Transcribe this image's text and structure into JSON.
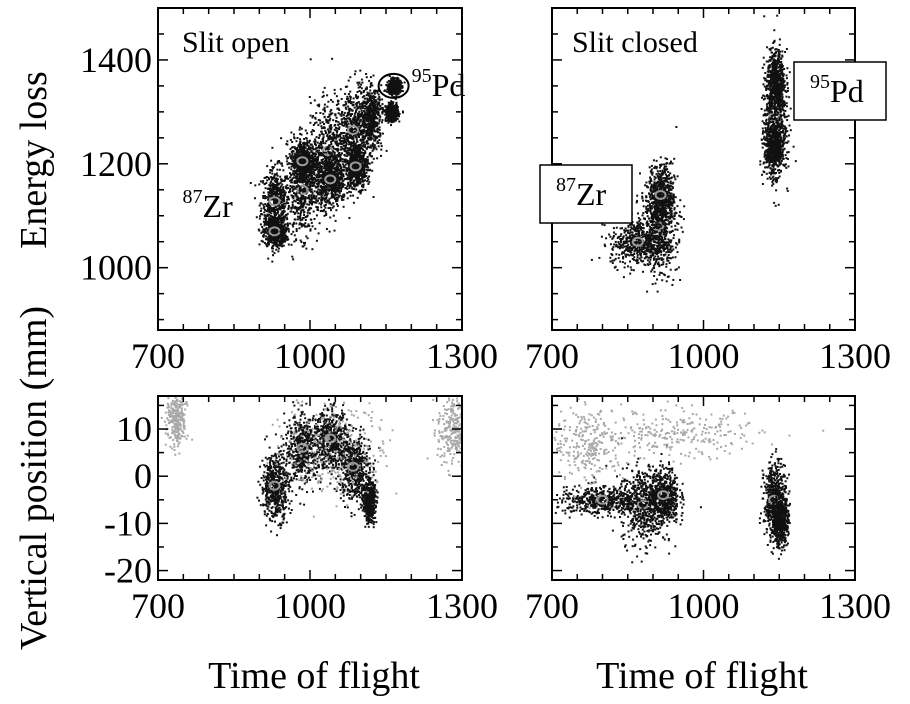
{
  "chart_data": [
    {
      "type": "scatter",
      "panel": "top-left",
      "label": "Slit open",
      "ylabel": "Energy loss",
      "xlim": [
        700,
        1300
      ],
      "ylim": [
        880,
        1500
      ],
      "x_ticks": [
        "700",
        "1000",
        "1300"
      ],
      "y_ticks": [
        "1000",
        "1200",
        "1400"
      ],
      "annotations": [
        {
          "mass": "87",
          "element": "Zr",
          "x": 930,
          "y": 1125
        },
        {
          "mass": "95",
          "element": "Pd",
          "x": 1165,
          "y": 1350
        }
      ],
      "clusters": [
        {
          "x": 930,
          "y": 1128,
          "sx": 14,
          "sy": 32,
          "level": "dark"
        },
        {
          "x": 930,
          "y": 1070,
          "sx": 11,
          "sy": 14,
          "level": "dark"
        },
        {
          "x": 985,
          "y": 1150,
          "sx": 16,
          "sy": 45,
          "level": "dark"
        },
        {
          "x": 985,
          "y": 1205,
          "sx": 13,
          "sy": 22,
          "level": "dark"
        },
        {
          "x": 1035,
          "y": 1225,
          "sx": 18,
          "sy": 50,
          "level": "dark"
        },
        {
          "x": 1040,
          "y": 1170,
          "sx": 14,
          "sy": 25,
          "level": "dark"
        },
        {
          "x": 1085,
          "y": 1265,
          "sx": 15,
          "sy": 42,
          "level": "dark"
        },
        {
          "x": 1090,
          "y": 1195,
          "sx": 11,
          "sy": 20,
          "level": "dark"
        },
        {
          "x": 1120,
          "y": 1290,
          "sx": 10,
          "sy": 30,
          "level": "dark"
        },
        {
          "x": 1160,
          "y": 1300,
          "sx": 6,
          "sy": 8,
          "level": "dark"
        },
        {
          "x": 1165,
          "y": 1350,
          "sx": 6,
          "sy": 7,
          "level": "dark"
        }
      ]
    },
    {
      "type": "scatter",
      "panel": "top-right",
      "label": "Slit closed",
      "xlim": [
        700,
        1300
      ],
      "ylim": [
        880,
        1500
      ],
      "x_ticks": [
        "700",
        "1000",
        "1300"
      ],
      "annotations": [
        {
          "mass": "87",
          "element": "Zr",
          "x": 920,
          "y": 1100
        },
        {
          "mass": "95",
          "element": "Pd",
          "x": 1150,
          "y": 1300
        }
      ],
      "clusters": [
        {
          "x": 910,
          "y": 1080,
          "sx": 18,
          "sy": 45,
          "level": "dark"
        },
        {
          "x": 915,
          "y": 1140,
          "sx": 13,
          "sy": 30,
          "level": "dark"
        },
        {
          "x": 870,
          "y": 1050,
          "sx": 28,
          "sy": 22,
          "level": "dark"
        },
        {
          "x": 1140,
          "y": 1290,
          "sx": 11,
          "sy": 55,
          "level": "dark"
        },
        {
          "x": 1142,
          "y": 1360,
          "sx": 9,
          "sy": 30,
          "level": "dark"
        },
        {
          "x": 1138,
          "y": 1230,
          "sx": 10,
          "sy": 25,
          "level": "dark"
        }
      ]
    },
    {
      "type": "scatter",
      "panel": "bottom-left",
      "ylabel": "Vertical position (mm)",
      "xlabel": "Time of flight",
      "xlim": [
        700,
        1300
      ],
      "ylim": [
        -22,
        17
      ],
      "x_ticks": [
        "700",
        "1000",
        "1300"
      ],
      "y_ticks": [
        "-20",
        "-10",
        "0",
        "10"
      ],
      "clusters": [
        {
          "x": 930,
          "y": -2,
          "sx": 14,
          "sy": 3.5,
          "level": "dark"
        },
        {
          "x": 985,
          "y": 6,
          "sx": 18,
          "sy": 3.5,
          "level": "dark"
        },
        {
          "x": 1040,
          "y": 8,
          "sx": 16,
          "sy": 3,
          "level": "dark"
        },
        {
          "x": 1085,
          "y": 2,
          "sx": 15,
          "sy": 3.5,
          "level": "dark"
        },
        {
          "x": 1115,
          "y": -5,
          "sx": 6,
          "sy": 2,
          "level": "dark"
        },
        {
          "x": 1050,
          "y": 7,
          "sx": 50,
          "sy": 6,
          "level": "light"
        },
        {
          "x": 735,
          "y": 12,
          "sx": 10,
          "sy": 3,
          "level": "light"
        },
        {
          "x": 1280,
          "y": 10,
          "sx": 15,
          "sy": 4,
          "level": "light"
        }
      ]
    },
    {
      "type": "scatter",
      "panel": "bottom-right",
      "xlabel": "Time of flight",
      "xlim": [
        700,
        1300
      ],
      "ylim": [
        -22,
        17
      ],
      "x_ticks": [
        "700",
        "1000",
        "1300"
      ],
      "clusters": [
        {
          "x": 880,
          "y": -6,
          "sx": 22,
          "sy": 4,
          "level": "dark"
        },
        {
          "x": 920,
          "y": -4,
          "sx": 15,
          "sy": 3,
          "level": "dark"
        },
        {
          "x": 800,
          "y": -5,
          "sx": 45,
          "sy": 1.5,
          "level": "dark"
        },
        {
          "x": 1140,
          "y": -5,
          "sx": 11,
          "sy": 4,
          "level": "dark"
        },
        {
          "x": 1150,
          "y": -9,
          "sx": 8,
          "sy": 2.5,
          "level": "dark"
        },
        {
          "x": 770,
          "y": 7,
          "sx": 35,
          "sy": 4,
          "level": "light"
        },
        {
          "x": 950,
          "y": 9,
          "sx": 80,
          "sy": 2.5,
          "level": "light"
        }
      ]
    }
  ]
}
